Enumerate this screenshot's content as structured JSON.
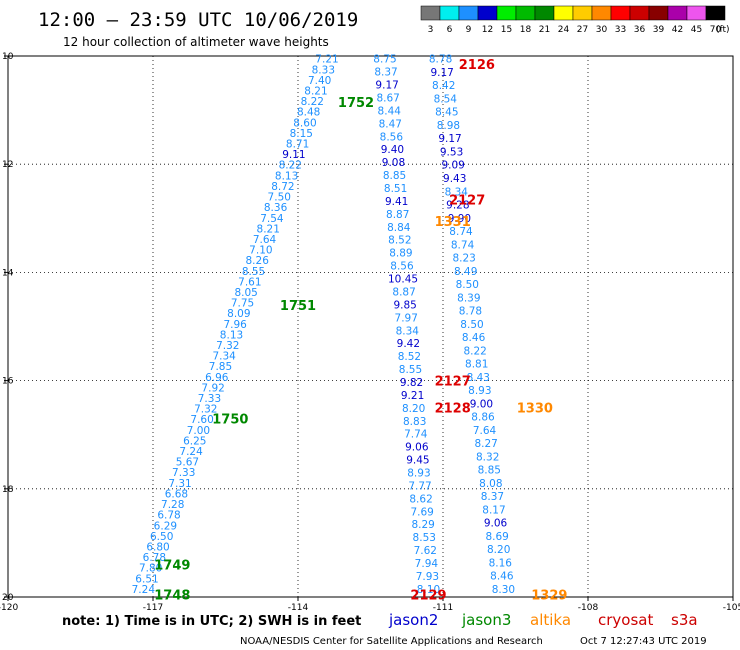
{
  "header": {
    "title": "12:00 — 23:59 UTC 10/06/2019",
    "subtitle": "12 hour collection of altimeter wave heights"
  },
  "color_scale": {
    "unit": "(ft)",
    "bins": [
      {
        "label": "3",
        "color": "#777777"
      },
      {
        "label": "6",
        "color": "#00eeee"
      },
      {
        "label": "9",
        "color": "#1e90ff"
      },
      {
        "label": "12",
        "color": "#0000cc"
      },
      {
        "label": "15",
        "color": "#00ee00"
      },
      {
        "label": "18",
        "color": "#00bb00"
      },
      {
        "label": "21",
        "color": "#008800"
      },
      {
        "label": "24",
        "color": "#ffff00"
      },
      {
        "label": "27",
        "color": "#ffcc00"
      },
      {
        "label": "30",
        "color": "#ff8800"
      },
      {
        "label": "33",
        "color": "#ff0000"
      },
      {
        "label": "36",
        "color": "#cc0000"
      },
      {
        "label": "39",
        "color": "#880000"
      },
      {
        "label": "42",
        "color": "#aa00aa"
      },
      {
        "label": "45",
        "color": "#ee55ee"
      },
      {
        "label": "70",
        "color": "#000000"
      }
    ]
  },
  "footer": {
    "note": "note: 1) Time is in UTC; 2) SWH is in feet",
    "legend": [
      {
        "label": "jason2",
        "color": "#0000cc"
      },
      {
        "label": "jason3",
        "color": "#008800"
      },
      {
        "label": "altika",
        "color": "#ff8800"
      },
      {
        "label": "cryosat",
        "color": "#cc0000"
      },
      {
        "label": "s3a",
        "color": "#cc0000"
      }
    ],
    "credit": "NOAA/NESDIS Center for Satellite Applications and Research",
    "timestamp": "Oct  7 12:27:43 UTC 2019"
  },
  "chart_data": {
    "type": "scatter",
    "xlim": [
      -120,
      -105
    ],
    "ylim": [
      20,
      10
    ],
    "x_ticks": [
      "-120",
      "-117",
      "-114",
      "-111",
      "-108",
      "-105"
    ],
    "x_tick_values": [
      -120,
      -117,
      -114,
      -111,
      -108,
      -105
    ],
    "y_ticks": [
      "10",
      "12",
      "14",
      "16",
      "18",
      "20"
    ],
    "y_tick_values": [
      10,
      12,
      14,
      16,
      18,
      20
    ],
    "grid": true,
    "tracks": [
      {
        "track": "A",
        "start": [
          -113.4,
          10.05
        ],
        "end": [
          -117.2,
          19.85
        ],
        "values": [
          "7.21",
          "8.33",
          "7.40",
          "8.21",
          "8.22",
          "8.48",
          "8.60",
          "8.15",
          "8.71",
          "9.11",
          "8.22",
          "8.13",
          "8.72",
          "7.50",
          "8.36",
          "7.54",
          "8.21",
          "7.64",
          "7.10",
          "8.26",
          "8.55",
          "7.61",
          "8.05",
          "7.75",
          "8.09",
          "7.96",
          "8.13",
          "7.32",
          "7.34",
          "7.85",
          "6.96",
          "7.92",
          "7.33",
          "7.32",
          "7.60",
          "7.00",
          "6.25",
          "7.24",
          "5.67",
          "7.33",
          "7.31",
          "6.68",
          "7.28",
          "6.78",
          "6.29",
          "6.50",
          "6.80",
          "6.78",
          "7.80",
          "6.51",
          "7.24"
        ],
        "colors": [
          "#1e90ff",
          "#1e90ff",
          "#1e90ff",
          "#1e90ff",
          "#1e90ff",
          "#1e90ff",
          "#1e90ff",
          "#1e90ff",
          "#1e90ff",
          "#0000cc",
          "#1e90ff",
          "#1e90ff",
          "#1e90ff",
          "#1e90ff",
          "#1e90ff",
          "#1e90ff",
          "#1e90ff",
          "#1e90ff",
          "#1e90ff",
          "#1e90ff",
          "#1e90ff",
          "#1e90ff",
          "#1e90ff",
          "#1e90ff",
          "#1e90ff",
          "#1e90ff",
          "#1e90ff",
          "#1e90ff",
          "#1e90ff",
          "#1e90ff",
          "#1e90ff",
          "#1e90ff",
          "#1e90ff",
          "#1e90ff",
          "#1e90ff",
          "#1e90ff",
          "#1e90ff",
          "#1e90ff",
          "#1e90ff",
          "#1e90ff",
          "#1e90ff",
          "#1e90ff",
          "#1e90ff",
          "#1e90ff",
          "#1e90ff",
          "#1e90ff",
          "#1e90ff",
          "#1e90ff",
          "#1e90ff",
          "#1e90ff",
          "#1e90ff"
        ]
      },
      {
        "track": "B",
        "start": [
          -112.2,
          10.05
        ],
        "end": [
          -111.3,
          19.85
        ],
        "values": [
          "8.75",
          "8.37",
          "9.17",
          "8.67",
          "8.44",
          "8.47",
          "8.56",
          "9.40",
          "9.08",
          "8.85",
          "8.51",
          "9.41",
          "8.87",
          "8.84",
          "8.52",
          "8.89",
          "8.56",
          "10.45",
          "8.87",
          "9.85",
          "7.97",
          "8.34",
          "9.42",
          "8.52",
          "8.55",
          "9.82",
          "9.21",
          "8.20",
          "8.83",
          "7.74",
          "9.06",
          "9.45",
          "8.93",
          "7.77",
          "8.62",
          "7.69",
          "8.29",
          "8.53",
          "7.62",
          "7.94",
          "7.93",
          "8.10"
        ],
        "colors": [
          "#1e90ff",
          "#1e90ff",
          "#0000cc",
          "#1e90ff",
          "#1e90ff",
          "#1e90ff",
          "#1e90ff",
          "#0000cc",
          "#0000cc",
          "#1e90ff",
          "#1e90ff",
          "#0000cc",
          "#1e90ff",
          "#1e90ff",
          "#1e90ff",
          "#1e90ff",
          "#1e90ff",
          "#0000cc",
          "#1e90ff",
          "#0000cc",
          "#1e90ff",
          "#1e90ff",
          "#0000cc",
          "#1e90ff",
          "#1e90ff",
          "#0000cc",
          "#0000cc",
          "#1e90ff",
          "#1e90ff",
          "#1e90ff",
          "#0000cc",
          "#0000cc",
          "#1e90ff",
          "#1e90ff",
          "#1e90ff",
          "#1e90ff",
          "#1e90ff",
          "#1e90ff",
          "#1e90ff",
          "#1e90ff",
          "#1e90ff",
          "#1e90ff"
        ]
      },
      {
        "track": "C",
        "start": [
          -111.05,
          10.05
        ],
        "end": [
          -109.75,
          19.85
        ],
        "values": [
          "8.78",
          "9.17",
          "8.42",
          "8.54",
          "8.45",
          "8.98",
          "9.17",
          "9.53",
          "9.09",
          "9.43",
          "8.34",
          "9.28",
          "9.90",
          "8.74",
          "8.74",
          "8.23",
          "8.49",
          "8.50",
          "8.39",
          "8.78",
          "8.50",
          "8.46",
          "8.22",
          "8.81",
          "8.43",
          "8.93",
          "9.00",
          "8.86",
          "7.64",
          "8.27",
          "8.32",
          "8.85",
          "8.08",
          "8.37",
          "8.17",
          "9.06",
          "8.69",
          "8.20",
          "8.16",
          "8.46",
          "8.30"
        ],
        "colors": [
          "#1e90ff",
          "#0000cc",
          "#1e90ff",
          "#1e90ff",
          "#1e90ff",
          "#1e90ff",
          "#0000cc",
          "#0000cc",
          "#0000cc",
          "#0000cc",
          "#1e90ff",
          "#0000cc",
          "#0000cc",
          "#1e90ff",
          "#1e90ff",
          "#1e90ff",
          "#1e90ff",
          "#1e90ff",
          "#1e90ff",
          "#1e90ff",
          "#1e90ff",
          "#1e90ff",
          "#1e90ff",
          "#1e90ff",
          "#1e90ff",
          "#1e90ff",
          "#0000cc",
          "#1e90ff",
          "#1e90ff",
          "#1e90ff",
          "#1e90ff",
          "#1e90ff",
          "#1e90ff",
          "#1e90ff",
          "#1e90ff",
          "#0000cc",
          "#1e90ff",
          "#1e90ff",
          "#1e90ff",
          "#1e90ff",
          "#1e90ff"
        ]
      }
    ],
    "time_labels": [
      {
        "text": "2126",
        "x": -110.3,
        "y": 10.15,
        "color": "#dd0000"
      },
      {
        "text": "1752",
        "x": -112.8,
        "y": 10.85,
        "color": "#008800"
      },
      {
        "text": "2127",
        "x": -110.5,
        "y": 12.65,
        "color": "#dd0000"
      },
      {
        "text": "1331",
        "x": -110.8,
        "y": 13.05,
        "color": "#ff8800"
      },
      {
        "text": "1751",
        "x": -114.0,
        "y": 14.6,
        "color": "#008800"
      },
      {
        "text": "2127",
        "x": -110.8,
        "y": 16.0,
        "color": "#dd0000"
      },
      {
        "text": "2128",
        "x": -110.8,
        "y": 16.5,
        "color": "#dd0000"
      },
      {
        "text": "1330",
        "x": -109.1,
        "y": 16.5,
        "color": "#ff8800"
      },
      {
        "text": "1750",
        "x": -115.4,
        "y": 16.7,
        "color": "#008800"
      },
      {
        "text": "1749",
        "x": -116.6,
        "y": 19.4,
        "color": "#008800"
      },
      {
        "text": "2129",
        "x": -111.3,
        "y": 19.95,
        "color": "#dd0000"
      },
      {
        "text": "1329",
        "x": -108.8,
        "y": 19.95,
        "color": "#ff8800"
      },
      {
        "text": "1748",
        "x": -116.6,
        "y": 19.95,
        "color": "#008800"
      }
    ]
  }
}
